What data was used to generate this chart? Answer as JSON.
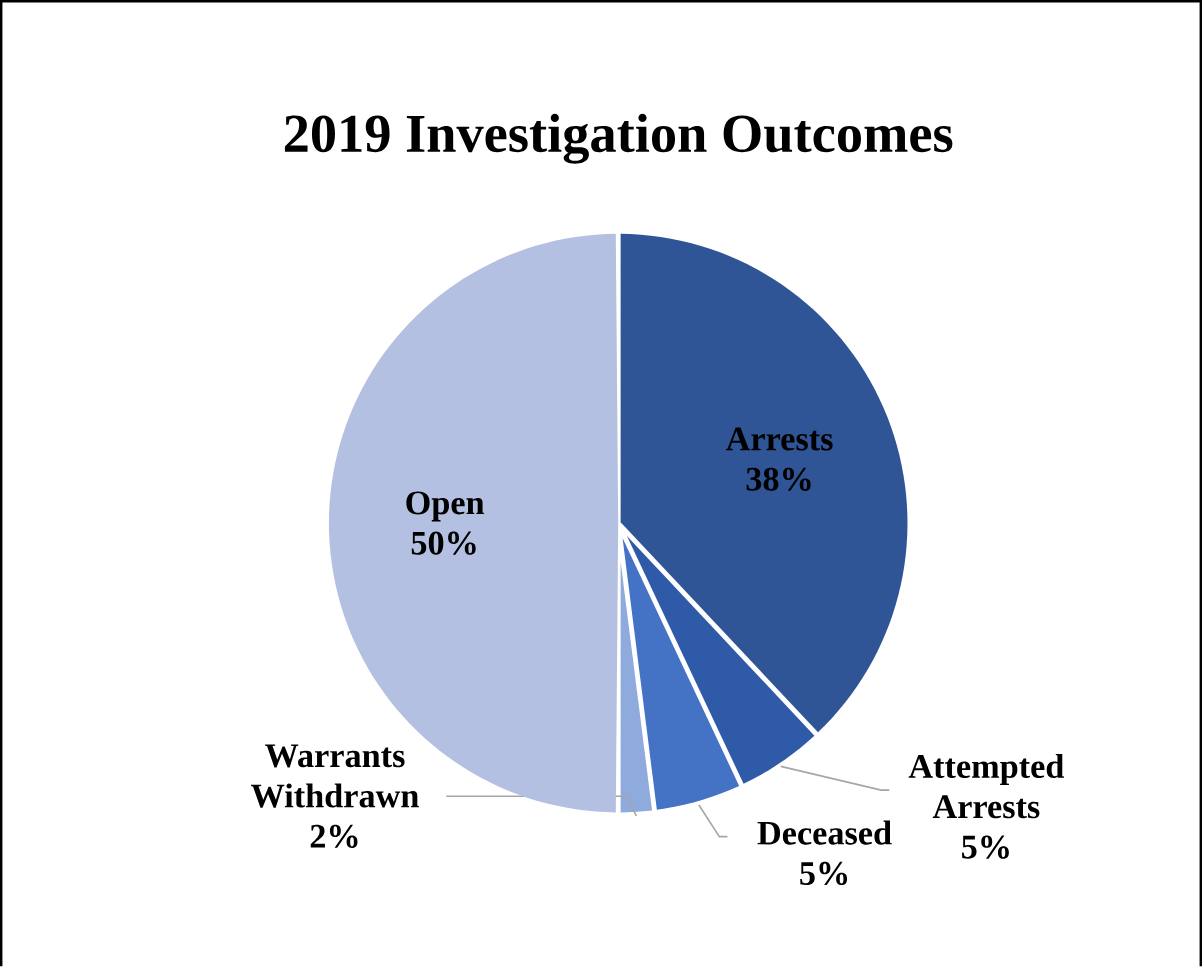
{
  "chart_data": {
    "type": "pie",
    "title": "2019 Investigation Outcomes",
    "categories": [
      "Arrests",
      "Attempted Arrests",
      "Deceased",
      "Warrants Withdrawn",
      "Open"
    ],
    "values": [
      38,
      5,
      5,
      2,
      50
    ],
    "value_labels": [
      "38%",
      "5%",
      "5%",
      "2%",
      "50%"
    ],
    "colors": [
      "#2f5597",
      "#2e5aa8",
      "#4472c4",
      "#8faadc",
      "#b4c0e1"
    ]
  }
}
